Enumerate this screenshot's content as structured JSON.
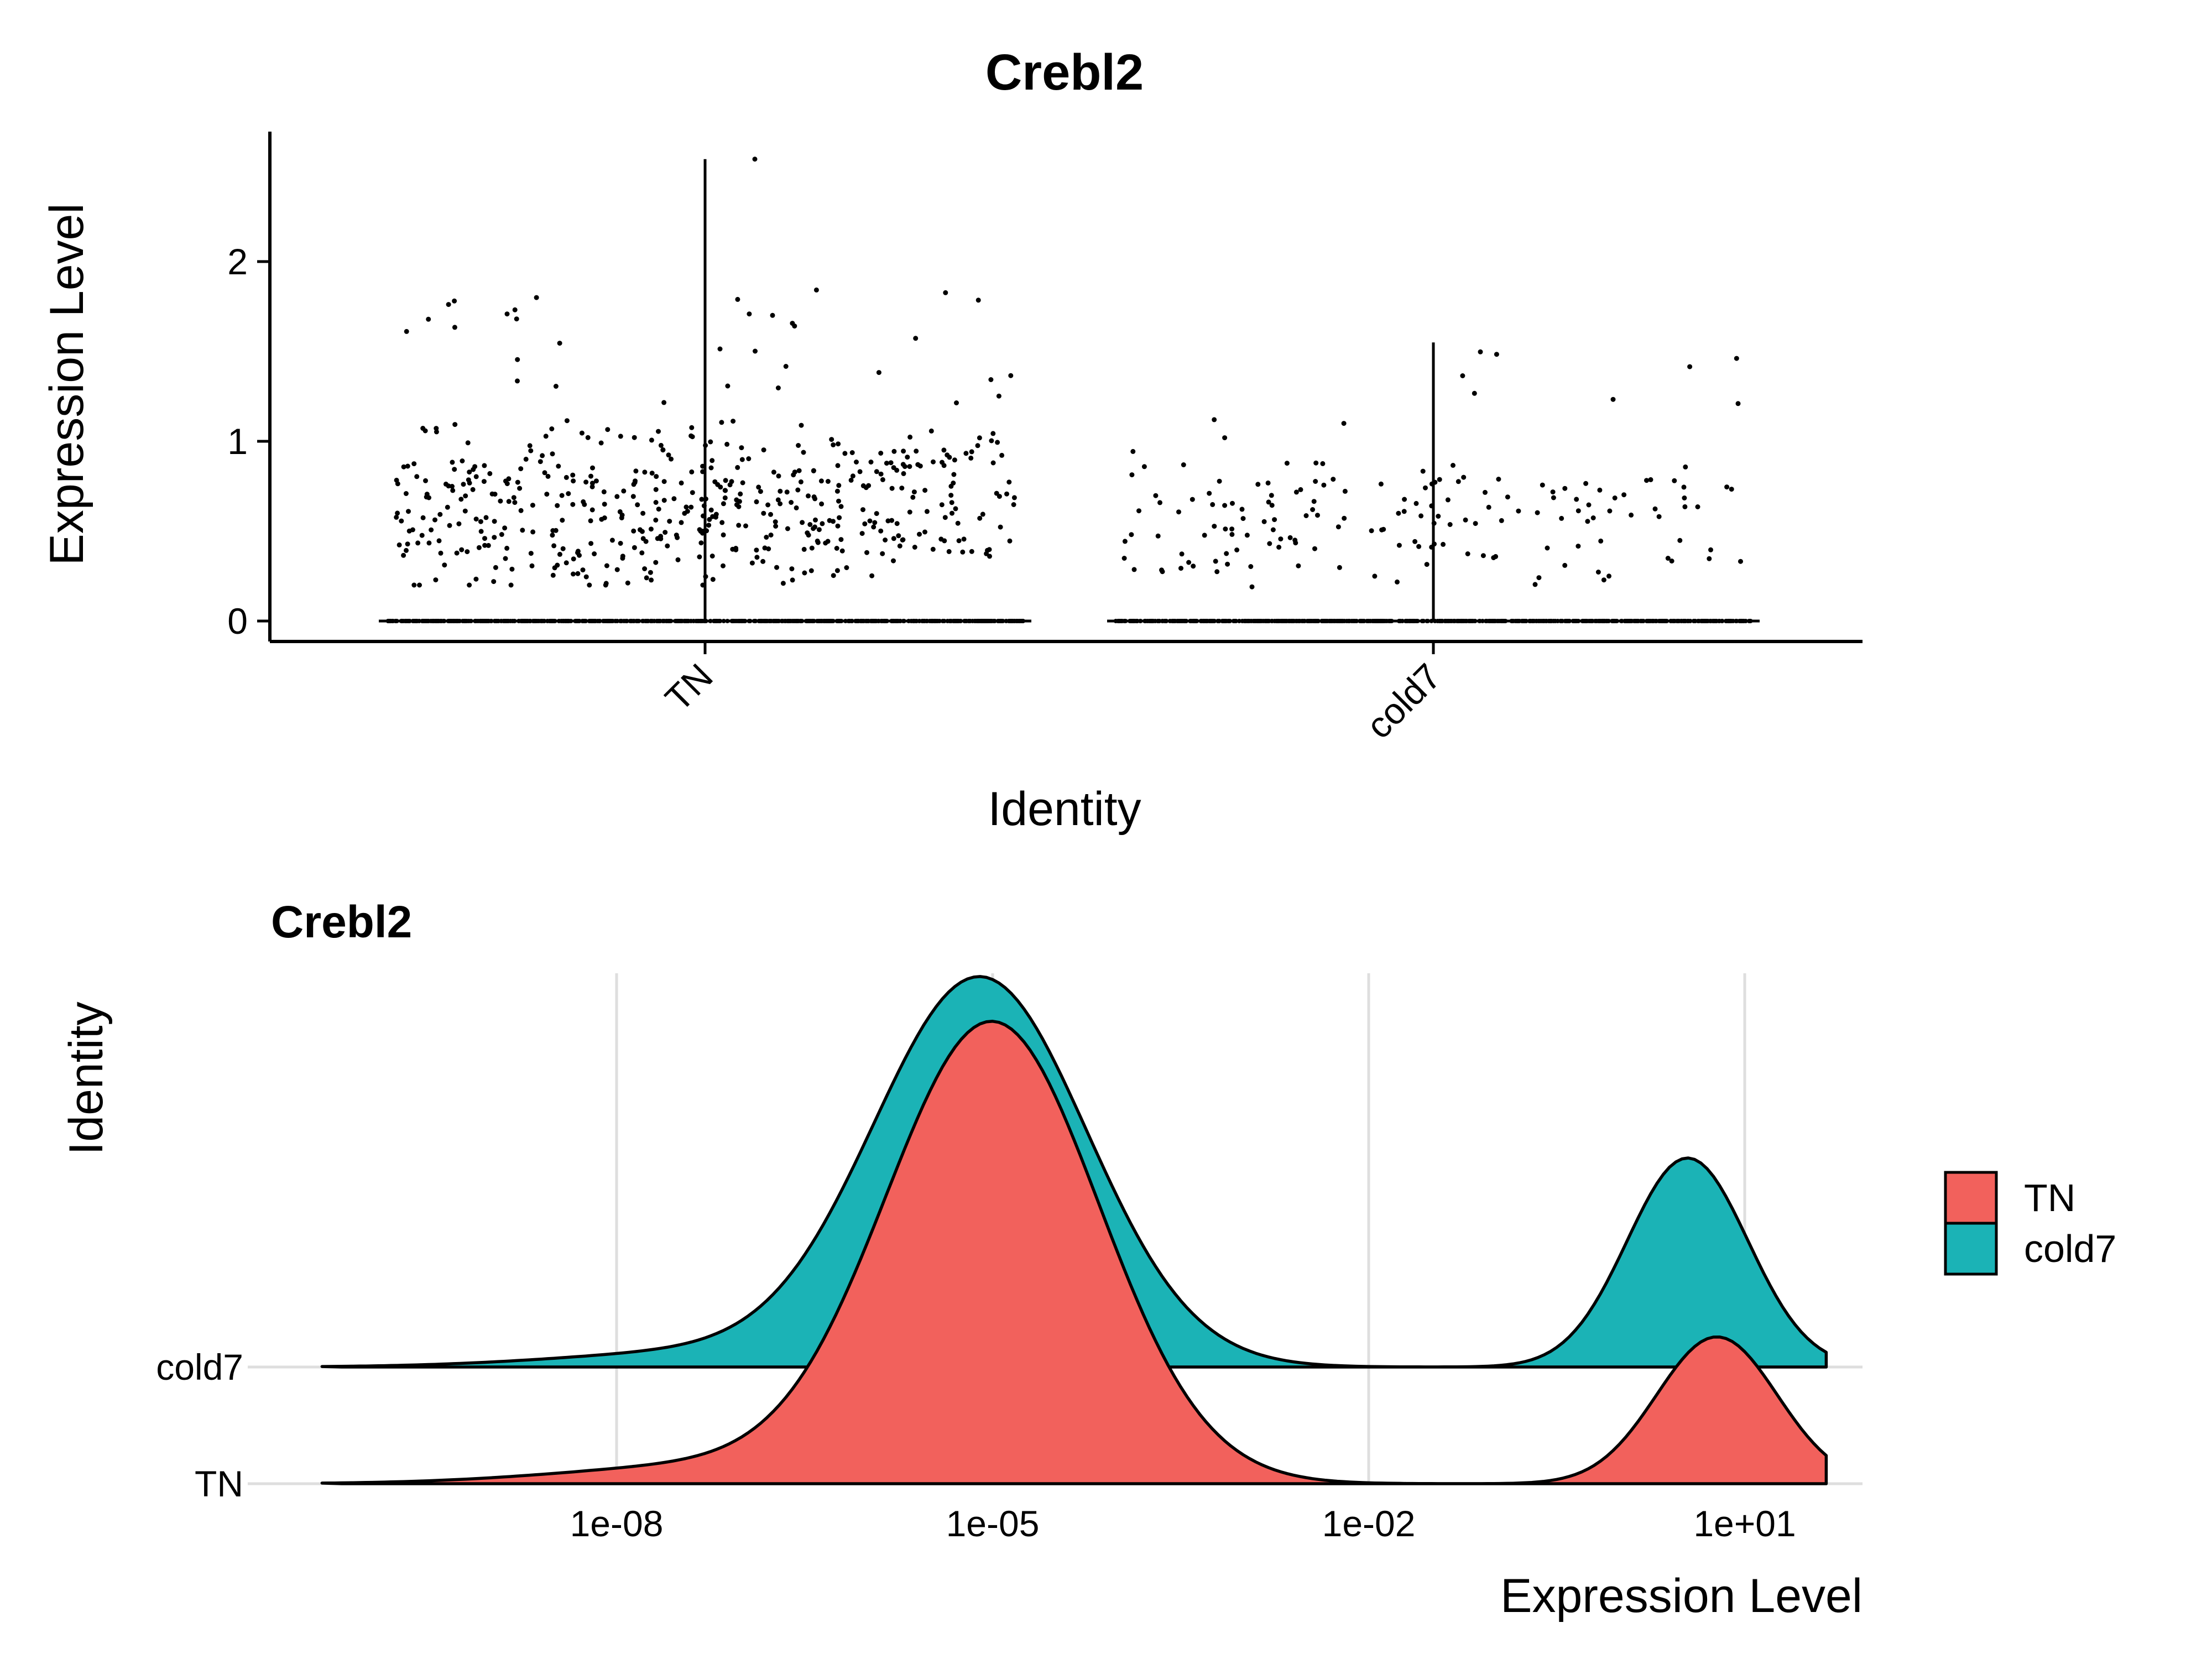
{
  "chart_data": [
    {
      "type": "violin-jitter",
      "title": "Crebl2",
      "xlabel": "Identity",
      "ylabel": "Expression Level",
      "categories": [
        "TN",
        "cold7"
      ],
      "yticks": [
        "0",
        "1",
        "2"
      ],
      "ylim": [
        -0.13,
        2.73
      ],
      "grid": false,
      "max_values": [
        2.57,
        1.55
      ],
      "zero_value": 0,
      "nonzero_range": {
        "TN": [
          0.2,
          2.6
        ],
        "cold7": [
          0.15,
          1.55
        ]
      },
      "approx_nonzero_cells": {
        "TN": 520,
        "cold7": 170
      }
    },
    {
      "type": "ridgeline",
      "title": "Crebl2",
      "xlabel": "Expression Level",
      "ylabel": "Identity",
      "x_scale": "log10",
      "xticks": [
        "1e-08",
        "1e-05",
        "1e-02",
        "1e+01"
      ],
      "xlim": [
        "1e-11",
        "1e+02"
      ],
      "grid": true,
      "categories": [
        "TN",
        "cold7"
      ],
      "legend": {
        "position": "right",
        "entries": [
          "TN",
          "cold7"
        ]
      },
      "colors": {
        "TN": "#F2615C",
        "cold7": "#1BB3B6"
      },
      "density_components": {
        "TN": [
          {
            "center": "1e-05",
            "relative_height": 1.0
          },
          {
            "center": "6e+00",
            "relative_height": 0.32
          }
        ],
        "cold7": [
          {
            "center": "8e-06",
            "relative_height": 1.0
          },
          {
            "center": "3.5e+00",
            "relative_height": 0.54
          }
        ]
      }
    }
  ]
}
